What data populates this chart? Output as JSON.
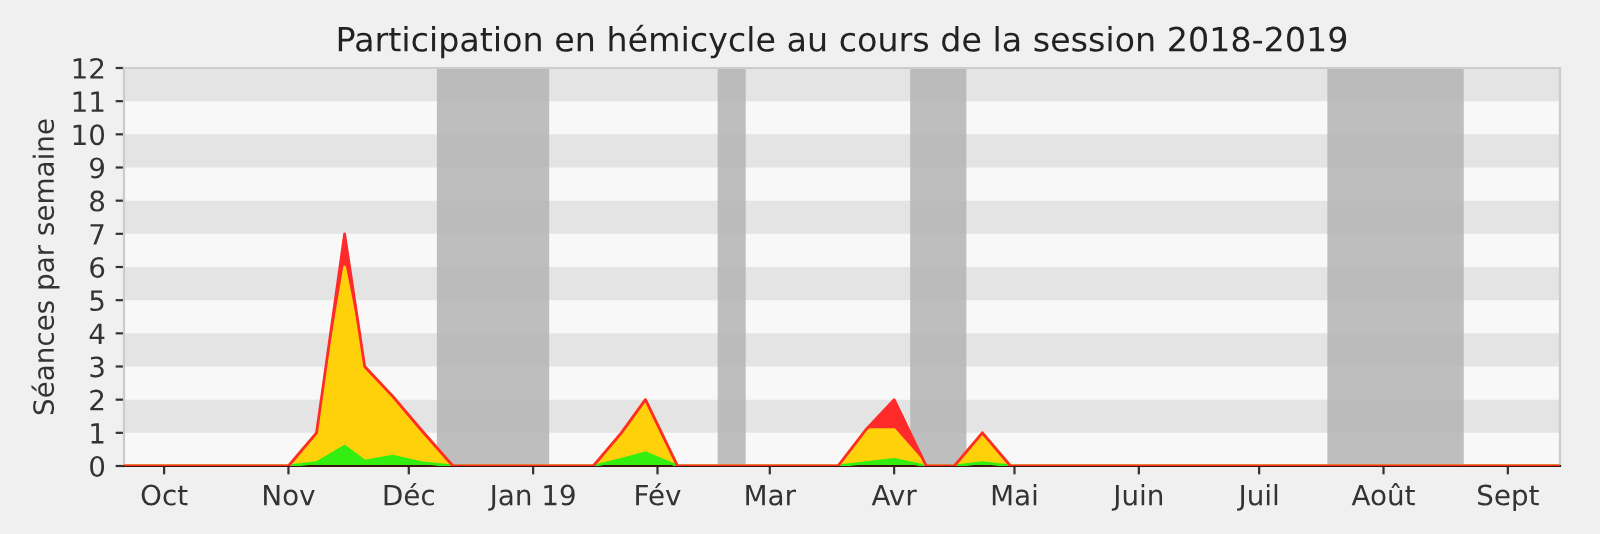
{
  "chart_data": {
    "type": "area",
    "title": "Participation en hémicycle au cours de la session 2018-2019",
    "ylabel": "Séances par semaine",
    "stacked": true,
    "x": [
      "2018-09-21",
      "2018-11-01",
      "2018-11-08",
      "2018-11-15",
      "2018-11-20",
      "2018-11-27",
      "2018-12-04",
      "2018-12-12",
      "2019-01-16",
      "2019-01-23",
      "2019-01-29",
      "2019-02-06",
      "2019-03-18",
      "2019-03-25",
      "2019-04-01",
      "2019-04-09",
      "2019-04-16",
      "2019-04-23",
      "2019-04-30",
      "2019-09-14"
    ],
    "series": [
      {
        "color": "#33ee11",
        "values": [
          0,
          0,
          0.1,
          0.6,
          0.15,
          0.3,
          0.1,
          0,
          0,
          0.2,
          0.4,
          0,
          0,
          0.1,
          0.2,
          0,
          0,
          0.1,
          0,
          0
        ]
      },
      {
        "color": "#ffd10a",
        "values": [
          0,
          0,
          0.9,
          5.4,
          2.85,
          1.8,
          1.0,
          0,
          0,
          0.8,
          1.6,
          0,
          0,
          1.0,
          0.9,
          0,
          0,
          0.9,
          0,
          0
        ]
      },
      {
        "color": "#ff2a2a",
        "values": [
          0,
          0,
          0,
          1,
          0,
          0,
          0,
          0,
          0,
          0,
          0,
          0,
          0,
          0,
          0.9,
          0,
          0,
          0,
          0,
          0
        ]
      }
    ],
    "xlim": [
      "2018-09-21",
      "2019-09-14"
    ],
    "xticks": [
      {
        "value": "2018-10-01",
        "label": "Oct"
      },
      {
        "value": "2018-11-01",
        "label": "Nov"
      },
      {
        "value": "2018-12-01",
        "label": "Déc"
      },
      {
        "value": "2019-01-01",
        "label": "Jan 19"
      },
      {
        "value": "2019-02-01",
        "label": "Fév"
      },
      {
        "value": "2019-03-01",
        "label": "Mar"
      },
      {
        "value": "2019-04-01",
        "label": "Avr"
      },
      {
        "value": "2019-05-01",
        "label": "Mai"
      },
      {
        "value": "2019-06-01",
        "label": "Juin"
      },
      {
        "value": "2019-07-01",
        "label": "Juil"
      },
      {
        "value": "2019-08-01",
        "label": "Août"
      },
      {
        "value": "2019-09-01",
        "label": "Sept"
      }
    ],
    "ylim": [
      0,
      12
    ],
    "yticks": [
      0,
      1,
      2,
      3,
      4,
      5,
      6,
      7,
      8,
      9,
      10,
      11,
      12
    ],
    "bands": [
      {
        "axis": "x",
        "from": "2018-12-08",
        "to": "2019-01-05",
        "color": "#b4b4b4"
      },
      {
        "axis": "x",
        "from": "2019-02-16",
        "to": "2019-02-23",
        "color": "#b4b4b4"
      },
      {
        "axis": "x",
        "from": "2019-04-05",
        "to": "2019-04-19",
        "color": "#b4b4b4"
      },
      {
        "axis": "x",
        "from": "2019-07-18",
        "to": "2019-08-21",
        "color": "#b4b4b4"
      }
    ],
    "grid": false
  }
}
